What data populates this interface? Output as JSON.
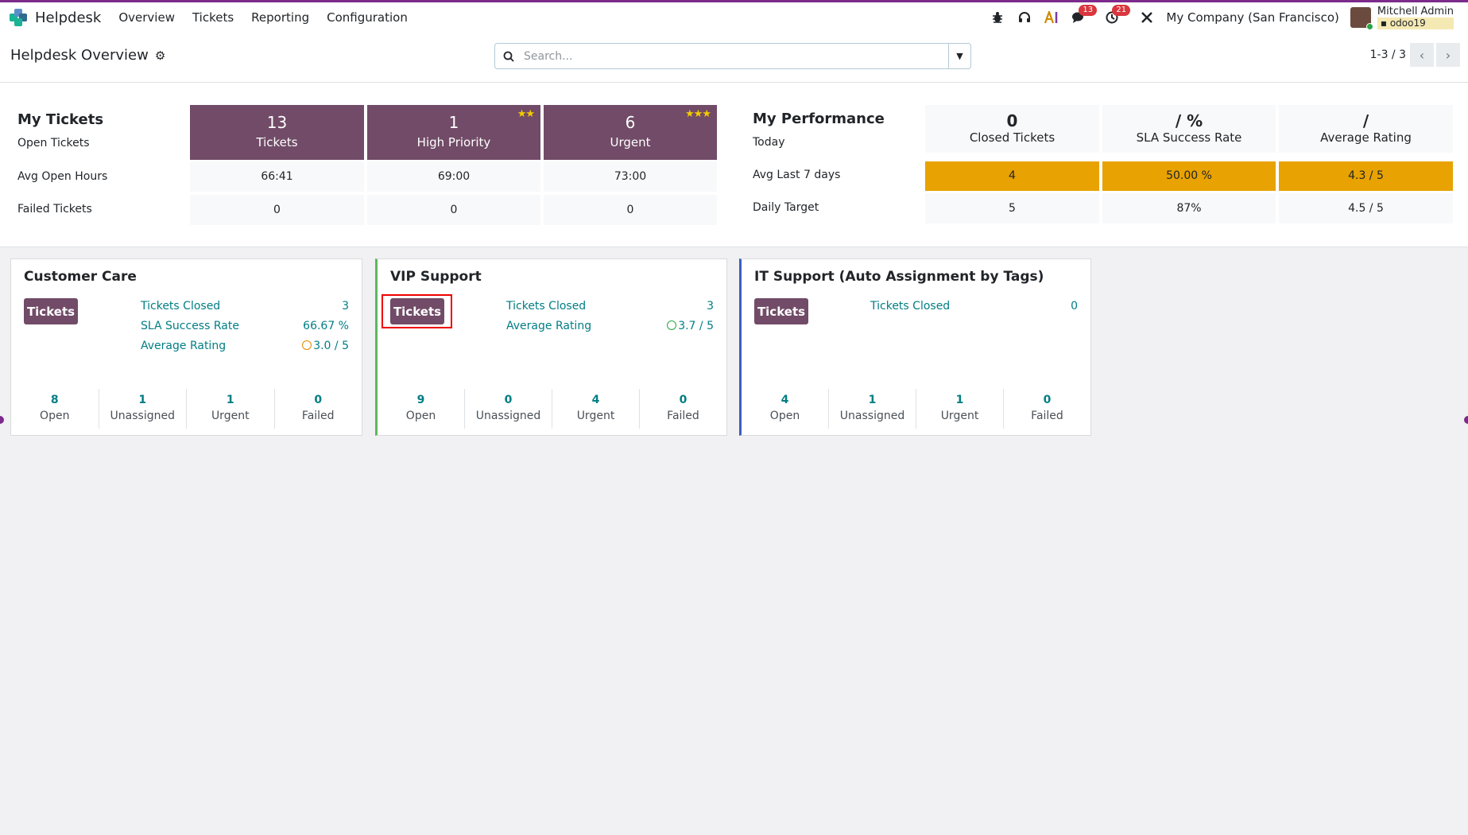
{
  "navbar": {
    "brand": "Helpdesk",
    "menu": [
      "Overview",
      "Tickets",
      "Reporting",
      "Configuration"
    ],
    "messages_count": "13",
    "activities_count": "21",
    "company": "My Company (San Francisco)",
    "user_name": "Mitchell Admin",
    "database": "odoo19"
  },
  "control": {
    "breadcrumb": "Helpdesk Overview",
    "search_placeholder": "Search...",
    "pager": "1-3 / 3"
  },
  "my_tickets": {
    "title": "My Tickets",
    "row_labels": [
      "Open Tickets",
      "Avg Open Hours",
      "Failed Tickets"
    ],
    "tiles": [
      {
        "value": "13",
        "label": "Tickets",
        "stars": ""
      },
      {
        "value": "1",
        "label": "High Priority",
        "stars": "★★"
      },
      {
        "value": "6",
        "label": "Urgent",
        "stars": "★★★"
      }
    ],
    "avg_open_hours": [
      "66:41",
      "69:00",
      "73:00"
    ],
    "failed": [
      "0",
      "0",
      "0"
    ]
  },
  "my_performance": {
    "title": "My Performance",
    "row_labels": [
      "Today",
      "Avg Last 7 days",
      "Daily Target"
    ],
    "today": [
      {
        "value": "0",
        "label": "Closed Tickets"
      },
      {
        "value": "/ %",
        "label": "SLA Success Rate"
      },
      {
        "value": "/",
        "label": "Average Rating"
      }
    ],
    "avg_last_7": [
      "4",
      "50.00 %",
      "4.3 / 5"
    ],
    "daily_target": [
      "5",
      "87%",
      "4.5 / 5"
    ]
  },
  "teams": [
    {
      "name": "Customer Care",
      "button": "Tickets",
      "stats": [
        {
          "label": "Tickets Closed",
          "value": "3"
        },
        {
          "label": "SLA Success Rate",
          "value": "66.67 %"
        },
        {
          "label": "Average Rating",
          "value": "3.0 / 5"
        }
      ],
      "counters": [
        {
          "value": "8",
          "label": "Open"
        },
        {
          "value": "1",
          "label": "Unassigned"
        },
        {
          "value": "1",
          "label": "Urgent"
        },
        {
          "value": "0",
          "label": "Failed"
        }
      ],
      "accent": "#ffffff",
      "rating_color": "#e08a00"
    },
    {
      "name": "VIP Support",
      "button": "Tickets",
      "stats": [
        {
          "label": "Tickets Closed",
          "value": "3"
        },
        {
          "label": "Average Rating",
          "value": "3.7 / 5"
        }
      ],
      "counters": [
        {
          "value": "9",
          "label": "Open"
        },
        {
          "value": "0",
          "label": "Unassigned"
        },
        {
          "value": "4",
          "label": "Urgent"
        },
        {
          "value": "0",
          "label": "Failed"
        }
      ],
      "accent": "#5cb85c",
      "rating_color": "#28a745"
    },
    {
      "name": "IT Support (Auto Assignment by Tags)",
      "button": "Tickets",
      "stats": [
        {
          "label": "Tickets Closed",
          "value": "0"
        }
      ],
      "counters": [
        {
          "value": "4",
          "label": "Open"
        },
        {
          "value": "1",
          "label": "Unassigned"
        },
        {
          "value": "1",
          "label": "Urgent"
        },
        {
          "value": "0",
          "label": "Failed"
        }
      ],
      "accent": "#3b5fc0",
      "rating_color": ""
    }
  ],
  "colors": {
    "primary": "#714b67",
    "link": "#017e84",
    "warning": "#e8a201",
    "badge": "#d9363e"
  }
}
